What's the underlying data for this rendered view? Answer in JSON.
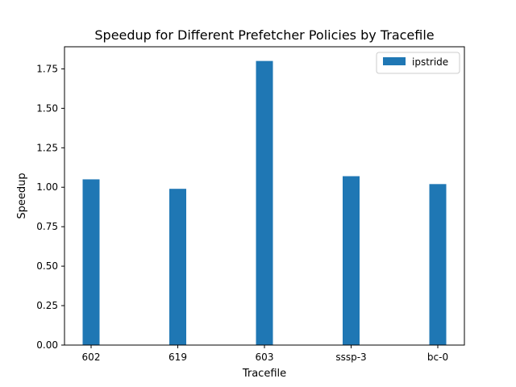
{
  "chart_data": {
    "type": "bar",
    "title": "Speedup for Different Prefetcher Policies by Tracefile",
    "xlabel": "Tracefile",
    "ylabel": "Speedup",
    "categories": [
      "602",
      "619",
      "603",
      "sssp-3",
      "bc-0"
    ],
    "series": [
      {
        "name": "ipstride",
        "values": [
          1.05,
          0.99,
          1.8,
          1.07,
          1.02
        ],
        "color": "#1f77b4"
      }
    ],
    "ylim": [
      0,
      1.89
    ],
    "yticks": [
      0.0,
      0.25,
      0.5,
      0.75,
      1.0,
      1.25,
      1.5,
      1.75
    ],
    "ytick_labels": [
      "0.00",
      "0.25",
      "0.50",
      "0.75",
      "1.00",
      "1.25",
      "1.50",
      "1.75"
    ],
    "grid": false,
    "legend_position": "top-right"
  }
}
